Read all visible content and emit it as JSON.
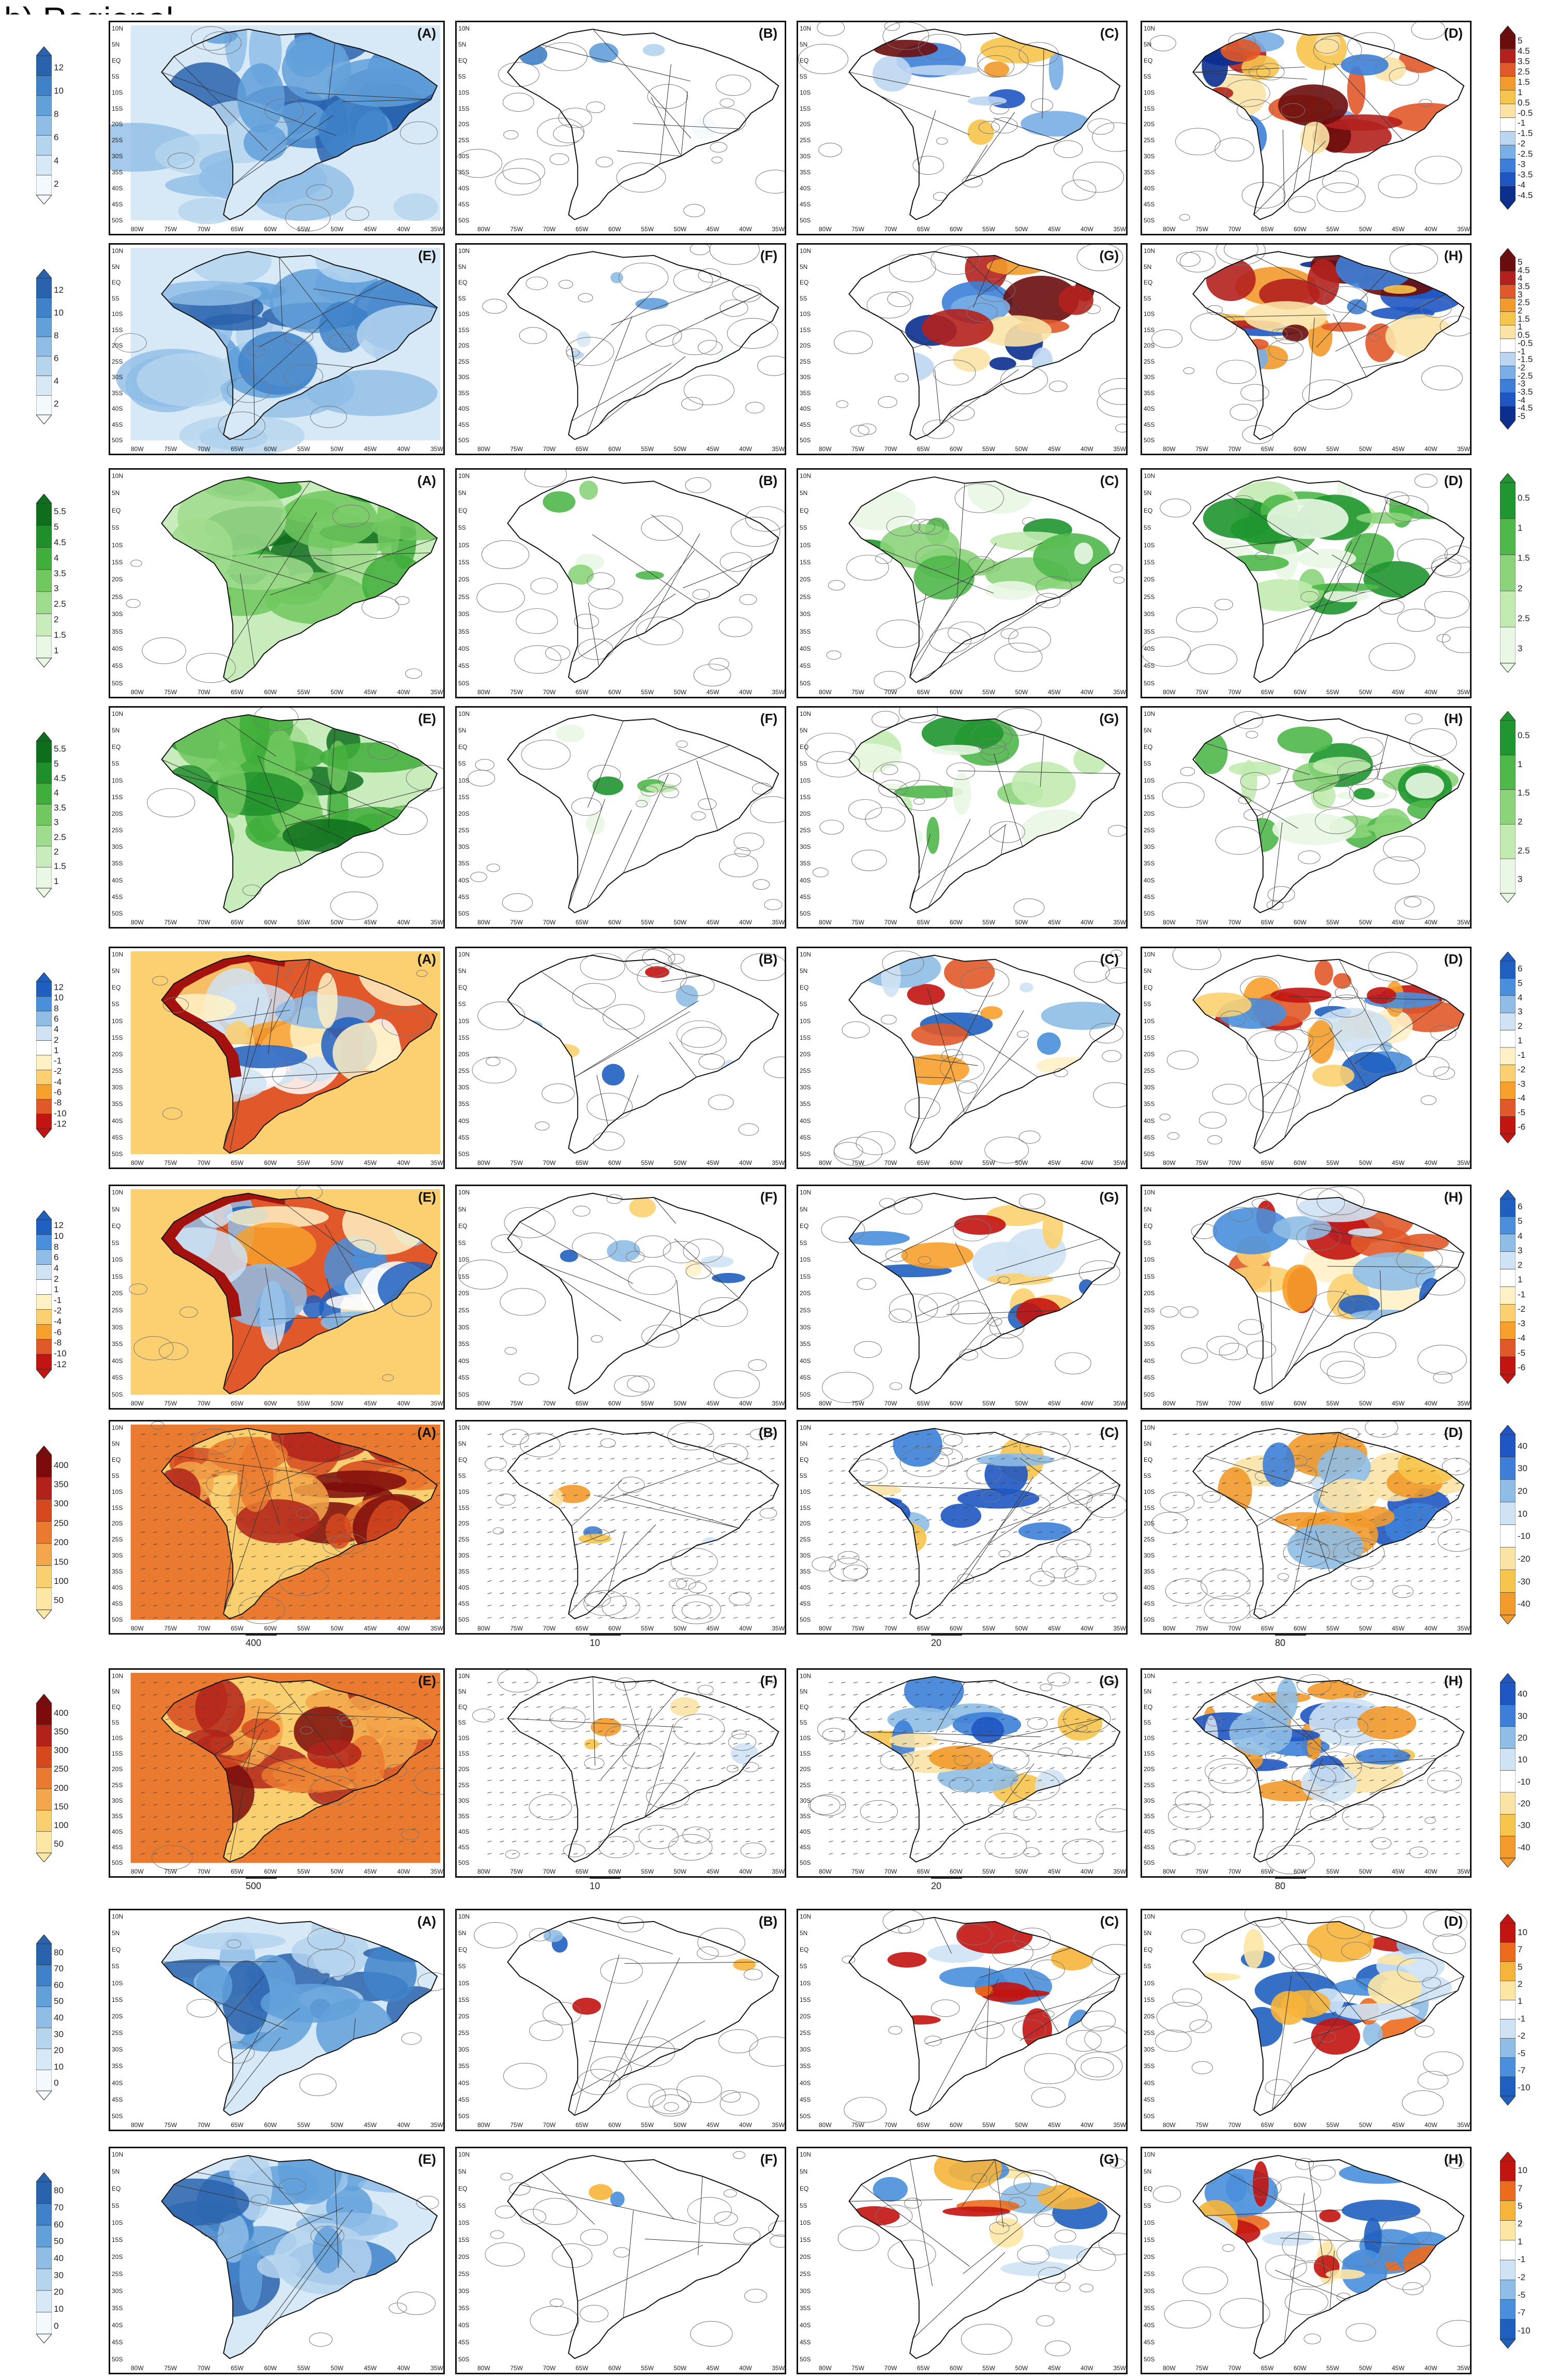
{
  "header": {
    "label": "b) Regional"
  },
  "lat_labels": [
    "10N",
    "5N",
    "EQ",
    "5S",
    "10S",
    "15S",
    "20S",
    "25S",
    "30S",
    "35S",
    "40S",
    "45S",
    "50S"
  ],
  "lon_labels": [
    "80W",
    "75W",
    "70W",
    "65W",
    "60W",
    "55W",
    "50W",
    "45W",
    "40W",
    "35W"
  ],
  "palettes": {
    "blue_seq": [
      "#f4f9fd",
      "#d7e8f6",
      "#b5d4ee",
      "#8fbde6",
      "#62a0da",
      "#3f82c9",
      "#2a63ad"
    ],
    "div_br": [
      "#0b2f8f",
      "#1f56c3",
      "#3d7fd8",
      "#79aee6",
      "#bcd6f1",
      "#ffffff",
      "#fbe3a6",
      "#f7c44c",
      "#f29a2b",
      "#e1592a",
      "#b3211e",
      "#6b0d0d"
    ],
    "green_seq": [
      "#eaf7e4",
      "#c8ecbb",
      "#a0dc8e",
      "#71c85f",
      "#3fae3a",
      "#1f8f2a",
      "#0f6e1d"
    ],
    "green_short": [
      "#eaf7e4",
      "#c2ebb0",
      "#8bd47a",
      "#4fb84a",
      "#1f962f"
    ],
    "div_ry": [
      "#c21410",
      "#e1592a",
      "#f7a02c",
      "#fcd071",
      "#fff1c6",
      "#ffffff",
      "#cfe3f5",
      "#8fbde6",
      "#4a8fdb",
      "#1f5fc0"
    ],
    "div_blue_red": [
      "#1f5fc0",
      "#4a8fdb",
      "#8fbde6",
      "#cfe3f5",
      "#ffffff",
      "#fde6a4",
      "#f7b43a",
      "#ec6b1d",
      "#c21410"
    ],
    "heat_seq": [
      "#fce7a4",
      "#f9cf6f",
      "#f3a64a",
      "#ea7a2f",
      "#d6491f",
      "#b2221a",
      "#7e0b0b"
    ],
    "orange_blue": [
      "#f29a2b",
      "#f7c44c",
      "#fbe3a6",
      "#ffffff",
      "#cfe3f5",
      "#8fbde6",
      "#3d7fd8",
      "#1f56c3"
    ]
  },
  "rows": [
    {
      "id": "row1",
      "left_cbar": {
        "palette": "blue_seq",
        "labels": [
          "12",
          "10",
          "8",
          "6",
          "4",
          "2"
        ],
        "style": "both"
      },
      "right_cbar": {
        "palette": "div_br",
        "labels": [
          "5",
          "4.5",
          "3.5",
          "2.5",
          "1.5",
          "1",
          "0.5",
          "-0.5",
          "-1",
          "-1.5",
          "-2",
          "-2.5",
          "-3",
          "-3.5",
          "-4",
          "-4.5"
        ],
        "style": "both"
      },
      "panels": [
        {
          "label": "(A)",
          "fill": "blue_seq",
          "pattern": "full"
        },
        {
          "label": "(B)",
          "fill": "blue_seq",
          "pattern": "sparse"
        },
        {
          "label": "(C)",
          "fill": "div_br",
          "pattern": "mid"
        },
        {
          "label": "(D)",
          "fill": "div_br",
          "pattern": "strong"
        }
      ]
    },
    {
      "id": "row2",
      "left_cbar": {
        "palette": "blue_seq",
        "labels": [
          "12",
          "10",
          "8",
          "6",
          "4",
          "2"
        ],
        "style": "both"
      },
      "right_cbar": {
        "palette": "div_br",
        "labels": [
          "5",
          "4.5",
          "4",
          "3.5",
          "3",
          "2.5",
          "2",
          "1.5",
          "1",
          "0.5",
          "-0.5",
          "-1",
          "-1.5",
          "-2",
          "-2.5",
          "-3",
          "-3.5",
          "-4",
          "-4.5",
          "-5"
        ],
        "style": "both"
      },
      "panels": [
        {
          "label": "(E)",
          "fill": "blue_seq",
          "pattern": "full"
        },
        {
          "label": "(F)",
          "fill": "blue_seq",
          "pattern": "sparse"
        },
        {
          "label": "(G)",
          "fill": "div_br",
          "pattern": "mid"
        },
        {
          "label": "(H)",
          "fill": "div_br",
          "pattern": "strong"
        }
      ]
    },
    {
      "id": "row3",
      "left_cbar": {
        "palette": "green_seq",
        "labels": [
          "5.5",
          "5",
          "4.5",
          "4",
          "3.5",
          "3",
          "2.5",
          "2",
          "1.5",
          "1"
        ],
        "style": "both"
      },
      "right_cbar": {
        "palette": "green_short",
        "labels": [
          "0.5",
          "1",
          "1.5",
          "2",
          "2.5",
          "3"
        ],
        "style": "both"
      },
      "panels": [
        {
          "label": "(A)",
          "fill": "green_seq",
          "pattern": "full"
        },
        {
          "label": "(B)",
          "fill": "green_short",
          "pattern": "sparse"
        },
        {
          "label": "(C)",
          "fill": "green_short",
          "pattern": "mid"
        },
        {
          "label": "(D)",
          "fill": "green_short",
          "pattern": "strong"
        }
      ]
    },
    {
      "id": "row4",
      "left_cbar": {
        "palette": "green_seq",
        "labels": [
          "5.5",
          "5",
          "4.5",
          "4",
          "3.5",
          "3",
          "2.5",
          "2",
          "1.5",
          "1"
        ],
        "style": "both"
      },
      "right_cbar": {
        "palette": "green_short",
        "labels": [
          "0.5",
          "1",
          "1.5",
          "2",
          "2.5",
          "3"
        ],
        "style": "both"
      },
      "panels": [
        {
          "label": "(E)",
          "fill": "green_seq",
          "pattern": "full"
        },
        {
          "label": "(F)",
          "fill": "green_short",
          "pattern": "sparse"
        },
        {
          "label": "(G)",
          "fill": "green_short",
          "pattern": "mid"
        },
        {
          "label": "(H)",
          "fill": "green_short",
          "pattern": "strong"
        }
      ]
    },
    {
      "id": "row5",
      "left_cbar": {
        "palette": "div_ry",
        "labels": [
          "12",
          "10",
          "8",
          "6",
          "4",
          "2",
          "1",
          "-1",
          "-2",
          "-4",
          "-6",
          "-8",
          "-10",
          "-12"
        ],
        "style": "both"
      },
      "right_cbar": {
        "palette": "div_ry",
        "labels": [
          "6",
          "5",
          "4",
          "3",
          "2",
          "1",
          "-1",
          "-2",
          "-3",
          "-4",
          "-5",
          "-6"
        ],
        "style": "both"
      },
      "panels": [
        {
          "label": "(A)",
          "fill": "div_ry",
          "pattern": "full"
        },
        {
          "label": "(B)",
          "fill": "div_ry",
          "pattern": "sparse"
        },
        {
          "label": "(C)",
          "fill": "div_ry",
          "pattern": "mid"
        },
        {
          "label": "(D)",
          "fill": "div_ry",
          "pattern": "strong"
        }
      ]
    },
    {
      "id": "row6",
      "left_cbar": {
        "palette": "div_ry",
        "labels": [
          "12",
          "10",
          "8",
          "6",
          "4",
          "2",
          "1",
          "-1",
          "-2",
          "-4",
          "-6",
          "-8",
          "-10",
          "-12"
        ],
        "style": "both"
      },
      "right_cbar": {
        "palette": "div_ry",
        "labels": [
          "6",
          "5",
          "4",
          "3",
          "2",
          "1",
          "-1",
          "-2",
          "-3",
          "-4",
          "-5",
          "-6"
        ],
        "style": "both"
      },
      "panels": [
        {
          "label": "(E)",
          "fill": "div_ry",
          "pattern": "full"
        },
        {
          "label": "(F)",
          "fill": "div_ry",
          "pattern": "sparse"
        },
        {
          "label": "(G)",
          "fill": "div_ry",
          "pattern": "mid"
        },
        {
          "label": "(H)",
          "fill": "div_ry",
          "pattern": "strong"
        }
      ]
    },
    {
      "id": "row7",
      "left_cbar": {
        "palette": "heat_seq",
        "labels": [
          "400",
          "350",
          "300",
          "250",
          "200",
          "150",
          "100",
          "50"
        ],
        "style": "both"
      },
      "right_cbar": {
        "palette": "orange_blue",
        "labels": [
          "40",
          "30",
          "20",
          "10",
          "-10",
          "-20",
          "-30",
          "-40"
        ],
        "style": "both"
      },
      "vector_refs": [
        "400",
        "10",
        "20",
        "80"
      ],
      "panels": [
        {
          "label": "(A)",
          "fill": "heat_seq",
          "pattern": "full"
        },
        {
          "label": "(B)",
          "fill": "orange_blue",
          "pattern": "sparse"
        },
        {
          "label": "(C)",
          "fill": "orange_blue",
          "pattern": "mid"
        },
        {
          "label": "(D)",
          "fill": "orange_blue",
          "pattern": "strong"
        }
      ]
    },
    {
      "id": "row8",
      "left_cbar": {
        "palette": "heat_seq",
        "labels": [
          "400",
          "350",
          "300",
          "250",
          "200",
          "150",
          "100",
          "50"
        ],
        "style": "both"
      },
      "right_cbar": {
        "palette": "orange_blue",
        "labels": [
          "40",
          "30",
          "20",
          "10",
          "-10",
          "-20",
          "-30",
          "-40"
        ],
        "style": "both"
      },
      "vector_refs": [
        "500",
        "10",
        "20",
        "80"
      ],
      "panels": [
        {
          "label": "(E)",
          "fill": "heat_seq",
          "pattern": "full"
        },
        {
          "label": "(F)",
          "fill": "orange_blue",
          "pattern": "sparse"
        },
        {
          "label": "(G)",
          "fill": "orange_blue",
          "pattern": "mid"
        },
        {
          "label": "(H)",
          "fill": "orange_blue",
          "pattern": "strong"
        }
      ]
    },
    {
      "id": "row9",
      "left_cbar": {
        "palette": "blue_seq",
        "labels": [
          "80",
          "70",
          "60",
          "50",
          "40",
          "30",
          "20",
          "10",
          "0"
        ],
        "style": "both"
      },
      "right_cbar": {
        "palette": "div_blue_red",
        "labels": [
          "10",
          "7",
          "5",
          "2",
          "1",
          "-1",
          "-2",
          "-5",
          "-7",
          "-10"
        ],
        "style": "both"
      },
      "panels": [
        {
          "label": "(A)",
          "fill": "blue_seq",
          "pattern": "full"
        },
        {
          "label": "(B)",
          "fill": "div_blue_red",
          "pattern": "sparse"
        },
        {
          "label": "(C)",
          "fill": "div_blue_red",
          "pattern": "mid"
        },
        {
          "label": "(D)",
          "fill": "div_blue_red",
          "pattern": "strong"
        }
      ]
    },
    {
      "id": "row10",
      "left_cbar": {
        "palette": "blue_seq",
        "labels": [
          "80",
          "70",
          "60",
          "50",
          "40",
          "30",
          "20",
          "10",
          "0"
        ],
        "style": "both"
      },
      "right_cbar": {
        "palette": "div_blue_red",
        "labels": [
          "10",
          "7",
          "5",
          "2",
          "1",
          "-1",
          "-2",
          "-5",
          "-7",
          "-10"
        ],
        "style": "both"
      },
      "panels": [
        {
          "label": "(E)",
          "fill": "blue_seq",
          "pattern": "full"
        },
        {
          "label": "(F)",
          "fill": "div_blue_red",
          "pattern": "sparse"
        },
        {
          "label": "(G)",
          "fill": "div_blue_red",
          "pattern": "mid"
        },
        {
          "label": "(H)",
          "fill": "div_blue_red",
          "pattern": "strong"
        }
      ]
    }
  ]
}
